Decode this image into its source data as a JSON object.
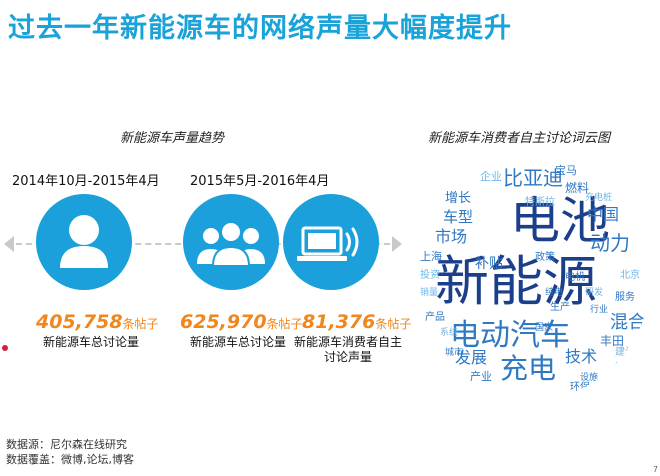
{
  "title": "过去一年新能源车的网络声量大幅度提升",
  "left_section_label": "新能源车声量趋势",
  "right_section_label": "新能源车消费者自主讨论词云图",
  "periods": [
    "2014年10月-2015年4月",
    "2015年5月-2016年4月"
  ],
  "stats": [
    {
      "value": "405,758",
      "unit": "条帖子",
      "label": "新能源车总讨论量",
      "icon": "person-icon"
    },
    {
      "value": "625,970",
      "unit": "条帖子",
      "label": "新能源车总讨论量",
      "icon": "group-icon"
    },
    {
      "value": "81,376",
      "unit": "条帖子",
      "label": "新能源车消费者自主讨论声量",
      "icon": "laptop-broadcast-icon"
    }
  ],
  "word_cloud": {
    "big": [
      "电池",
      "新能源",
      "电动汽车",
      "充电",
      "比亚迪",
      "动力",
      "中国",
      "市场",
      "发展",
      "技术",
      "混合",
      "补贴",
      "车型",
      "增长"
    ],
    "small": [
      "企业",
      "宝马",
      "燃料",
      "充电桩",
      "政策",
      "上海",
      "投资",
      "产品",
      "电机",
      "研发",
      "生产",
      "服务",
      "北京",
      "国家",
      "丰田",
      "建设",
      "产业",
      "环保",
      "系统",
      "城市",
      "设施",
      "特斯拉",
      "推出",
      "行业",
      "销量",
      "纯电"
    ]
  },
  "source": {
    "line1": "数据源：尼尔森在线研究",
    "line2": "数据覆盖：微博,论坛,博客"
  },
  "page_number": "7",
  "colors": {
    "title": "#1aa3d8",
    "circle": "#1ba0db",
    "accent": "#f0861d",
    "cloud_dark": "#1c3f8c",
    "cloud_mid": "#2f78c4",
    "cloud_light": "#6fb6e8"
  }
}
